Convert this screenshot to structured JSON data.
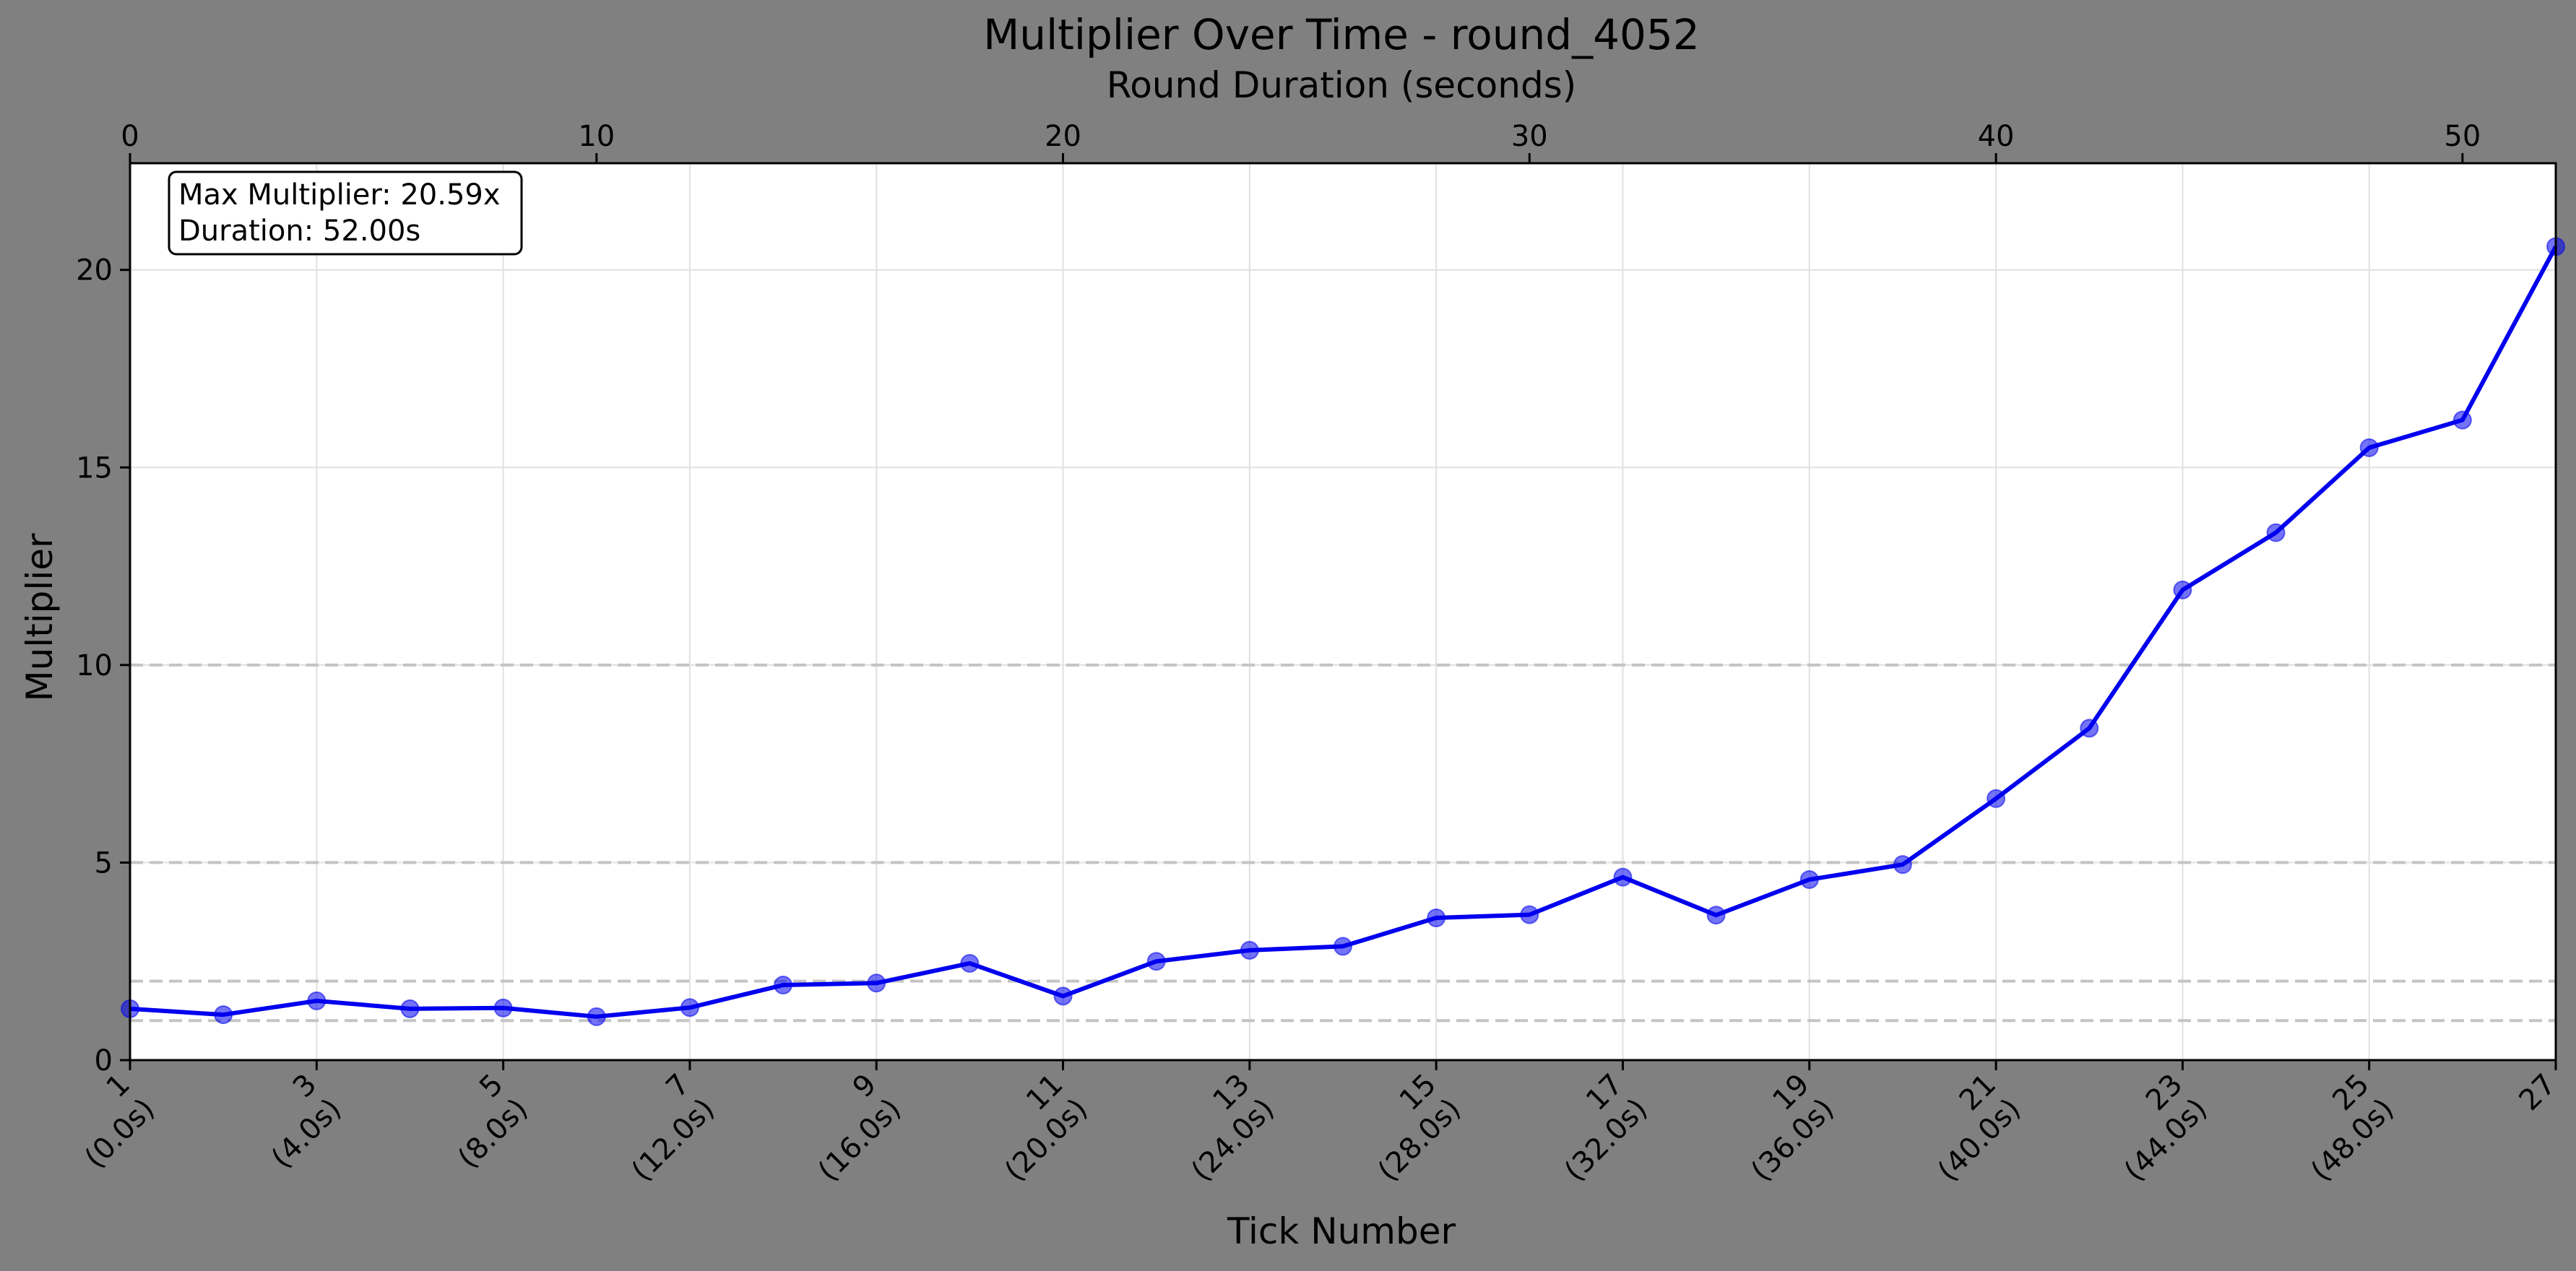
{
  "chart_data": {
    "type": "line",
    "title": "Multiplier Over Time - round_4052",
    "xlabel": "Tick Number",
    "x2label": "Round Duration (seconds)",
    "ylabel": "Multiplier",
    "xlim": [
      1,
      27
    ],
    "x2lim": [
      0,
      52
    ],
    "ylim": [
      0,
      22.7
    ],
    "yticks": [
      0,
      5,
      10,
      15,
      20
    ],
    "x2ticks": [
      0,
      10,
      20,
      30,
      40,
      50
    ],
    "xticks": [
      {
        "tick": 1,
        "label": "1",
        "sublabel": "(0.0s)"
      },
      {
        "tick": 3,
        "label": "3",
        "sublabel": "(4.0s)"
      },
      {
        "tick": 5,
        "label": "5",
        "sublabel": "(8.0s)"
      },
      {
        "tick": 7,
        "label": "7",
        "sublabel": "(12.0s)"
      },
      {
        "tick": 9,
        "label": "9",
        "sublabel": "(16.0s)"
      },
      {
        "tick": 11,
        "label": "11",
        "sublabel": "(20.0s)"
      },
      {
        "tick": 13,
        "label": "13",
        "sublabel": "(24.0s)"
      },
      {
        "tick": 15,
        "label": "15",
        "sublabel": "(28.0s)"
      },
      {
        "tick": 17,
        "label": "17",
        "sublabel": "(32.0s)"
      },
      {
        "tick": 19,
        "label": "19",
        "sublabel": "(36.0s)"
      },
      {
        "tick": 21,
        "label": "21",
        "sublabel": "(40.0s)"
      },
      {
        "tick": 23,
        "label": "23",
        "sublabel": "(44.0s)"
      },
      {
        "tick": 25,
        "label": "25",
        "sublabel": "(48.0s)"
      },
      {
        "tick": 27,
        "label": "27",
        "sublabel": ""
      }
    ],
    "reference_lines": [
      1,
      2,
      5,
      10
    ],
    "grid": true,
    "series": [
      {
        "color": "#0000ee",
        "x": [
          1,
          2,
          3,
          4,
          5,
          6,
          7,
          8,
          9,
          10,
          11,
          12,
          13,
          14,
          15,
          16,
          17,
          18,
          19,
          20,
          21,
          22,
          23,
          24,
          25,
          26,
          27
        ],
        "values": [
          1.3,
          1.15,
          1.5,
          1.3,
          1.32,
          1.1,
          1.33,
          1.9,
          1.95,
          2.45,
          1.62,
          2.5,
          2.78,
          2.88,
          3.6,
          3.68,
          4.63,
          3.67,
          4.57,
          4.95,
          6.62,
          8.4,
          11.9,
          13.35,
          15.5,
          16.2,
          20.59
        ]
      }
    ],
    "annotation": {
      "line1": "Max Multiplier: 20.59x",
      "line2": "Duration: 52.00s"
    }
  }
}
